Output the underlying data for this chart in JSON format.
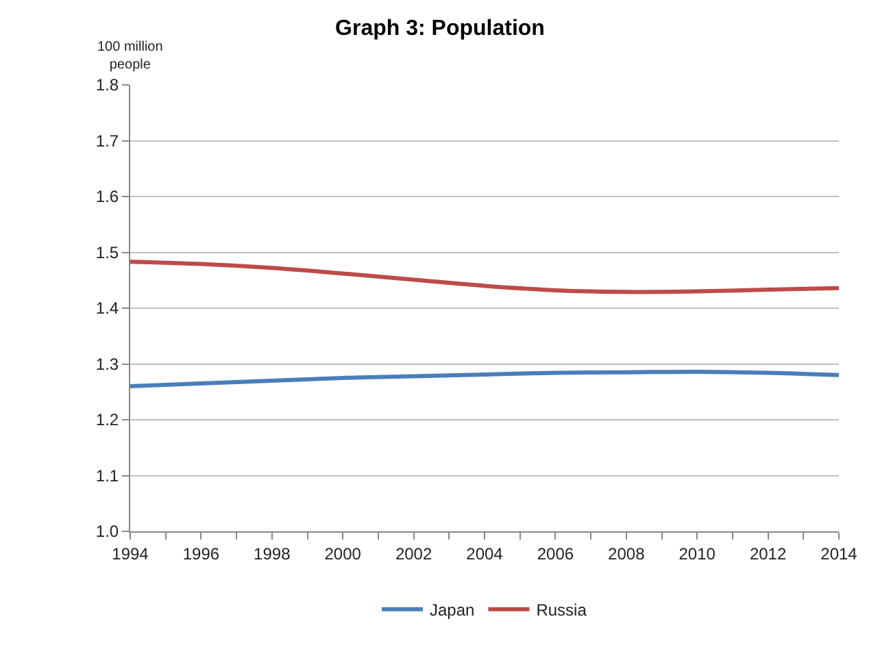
{
  "chart_data": {
    "type": "line",
    "title": "Graph 3: Population",
    "ylabel": "100 million\npeople",
    "x": [
      1994,
      1996,
      1998,
      2000,
      2002,
      2004,
      2006,
      2008,
      2010,
      2012,
      2014
    ],
    "series": [
      {
        "name": "Japan",
        "color": "#4a7ebb",
        "values": [
          1.26,
          1.265,
          1.27,
          1.275,
          1.278,
          1.281,
          1.284,
          1.285,
          1.286,
          1.284,
          1.28
        ]
      },
      {
        "name": "Russia",
        "color": "#be4b48",
        "values": [
          1.483,
          1.479,
          1.472,
          1.462,
          1.451,
          1.44,
          1.432,
          1.429,
          1.43,
          1.433,
          1.436
        ]
      }
    ],
    "xlim": [
      1994,
      2014
    ],
    "xticks": [
      1994,
      {
        "value": 1995,
        "label": null
      },
      1996,
      {
        "value": 1997,
        "label": null
      },
      1998,
      {
        "value": 1999,
        "label": null
      },
      2000,
      {
        "value": 2001,
        "label": null
      },
      2002,
      {
        "value": 2003,
        "label": null
      },
      2004,
      {
        "value": 2005,
        "label": null
      },
      2006,
      {
        "value": 2007,
        "label": null
      },
      2008,
      {
        "value": 2009,
        "label": null
      },
      2010,
      {
        "value": 2011,
        "label": null
      },
      2012,
      {
        "value": 2013,
        "label": null
      },
      2014
    ],
    "ylim": [
      1.0,
      1.8
    ],
    "yticks": [
      {
        "value": 1.0,
        "label": "1.0"
      },
      1.1,
      1.2,
      1.3,
      1.4,
      1.5,
      1.6,
      1.7,
      1.8
    ],
    "grid": "y",
    "legend": "bottom",
    "marker": "none",
    "line_style": "solid"
  }
}
